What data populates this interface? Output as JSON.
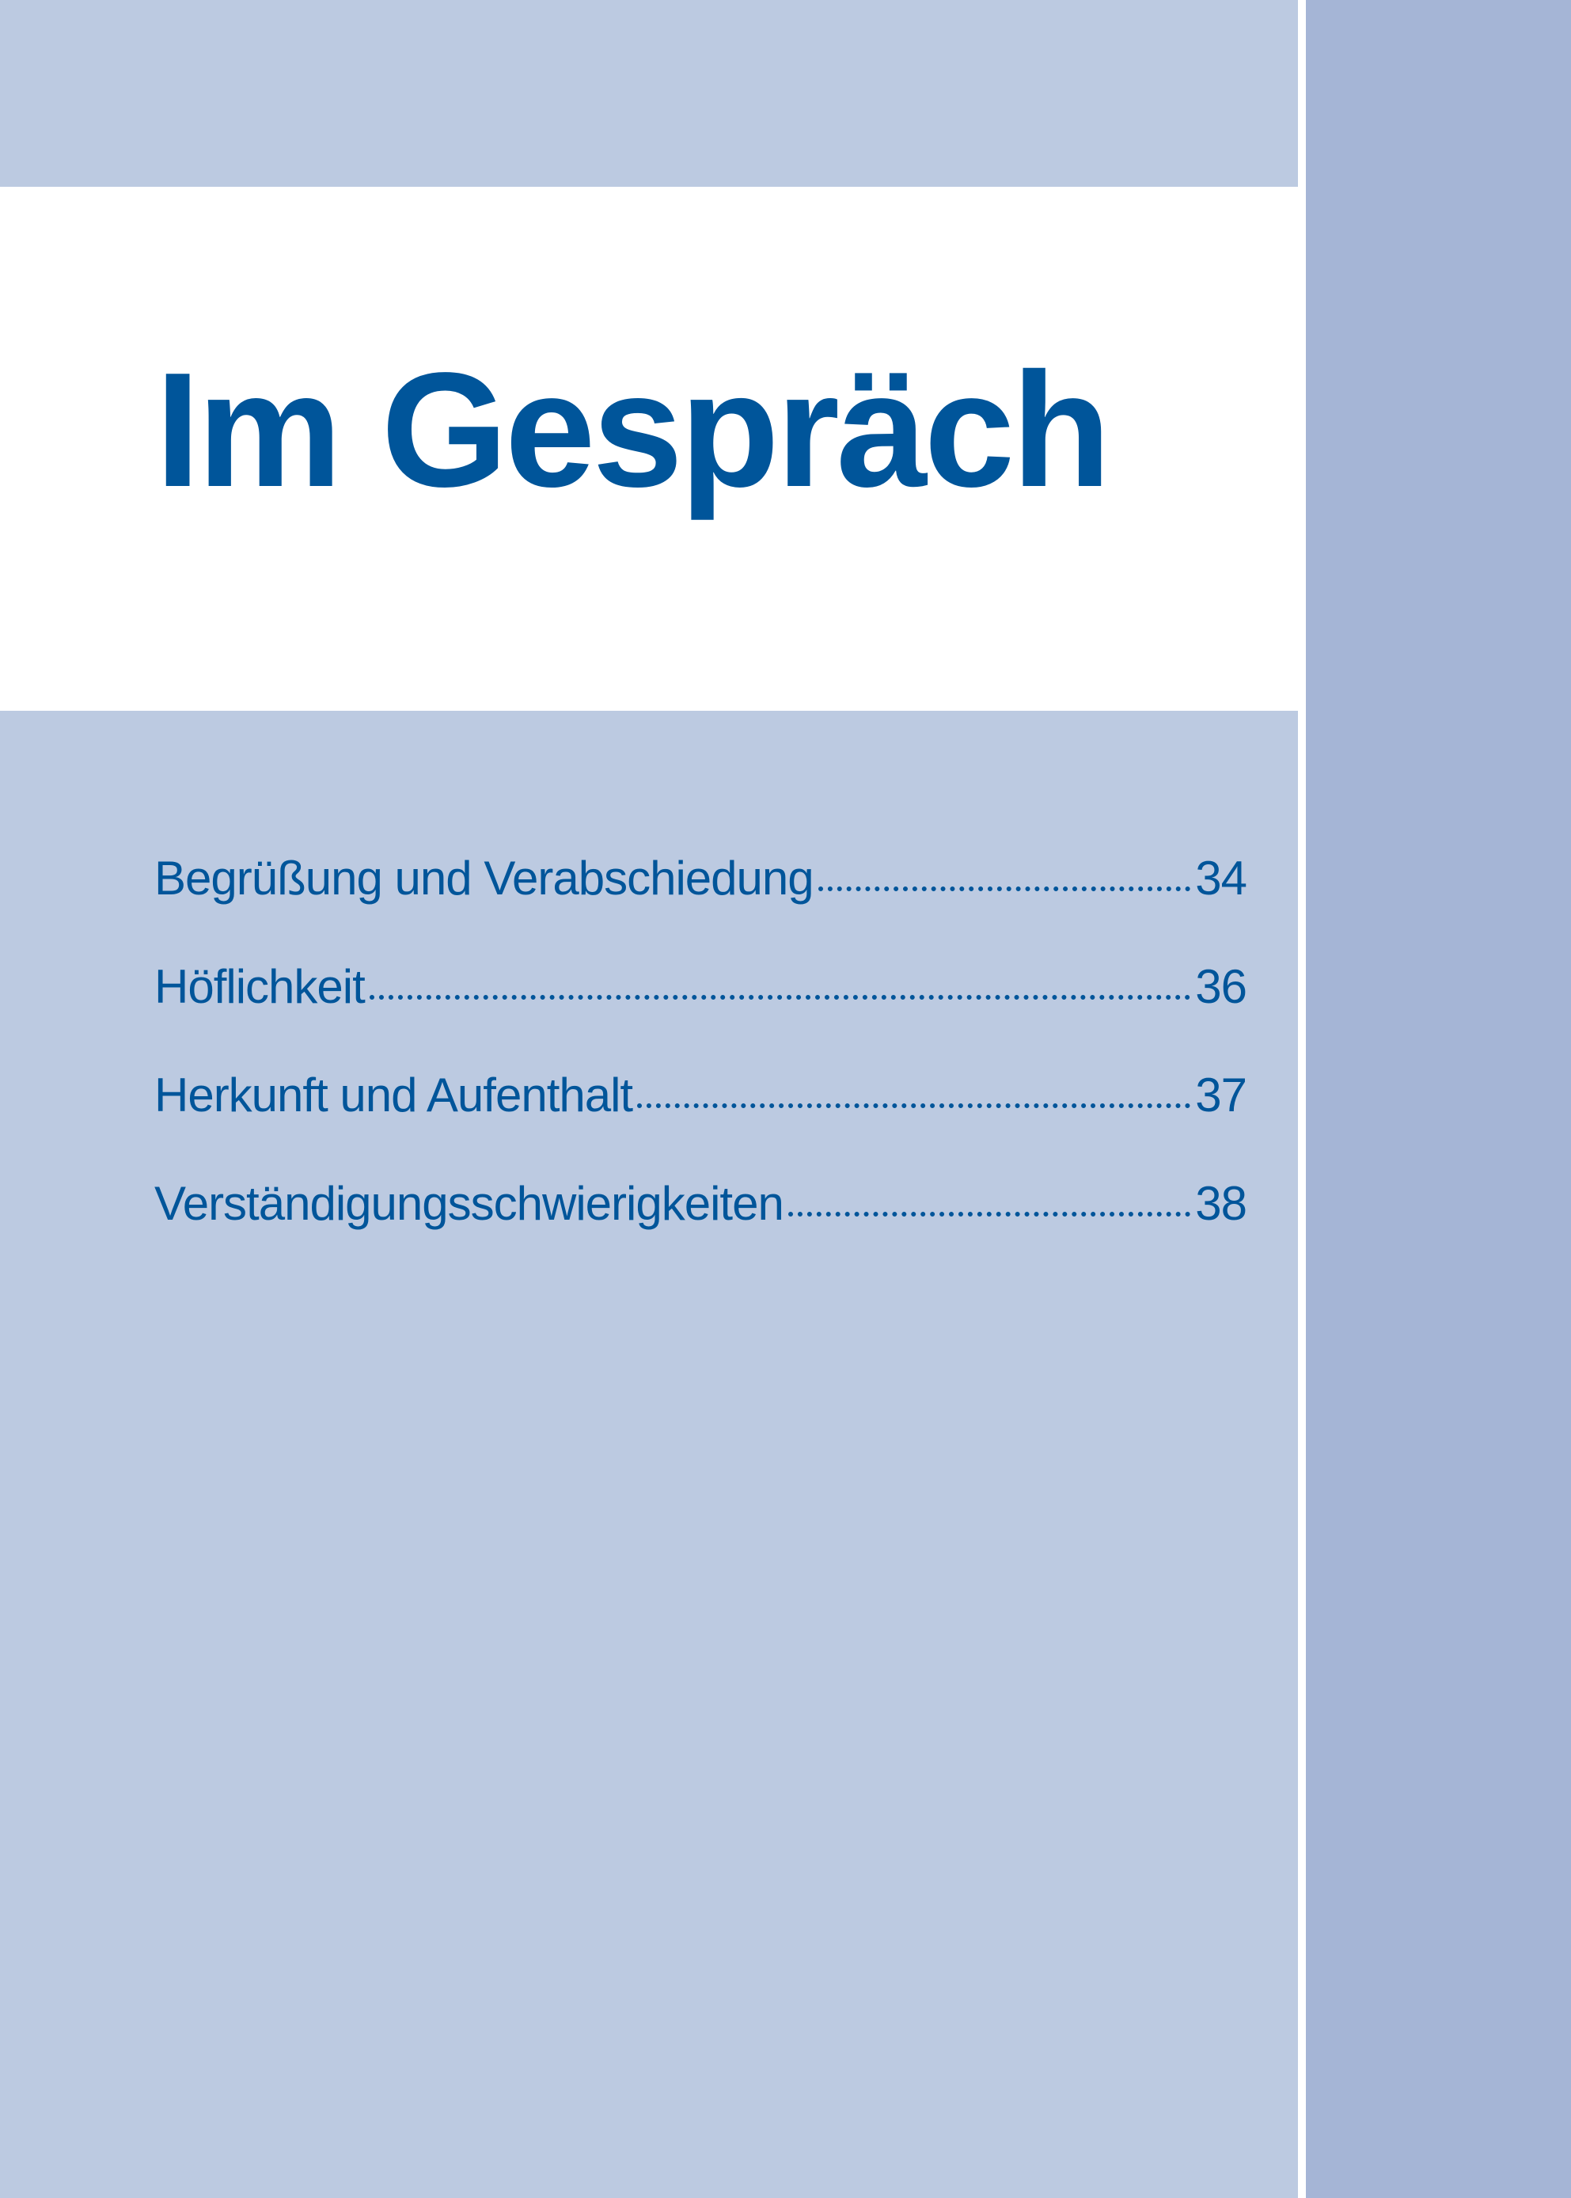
{
  "title": "Im Gespräch",
  "colors": {
    "text": "#00559a",
    "band": "#bccae1",
    "side_strip": "#a5b5d6"
  },
  "toc": [
    {
      "label": "Begrüßung und Verabschiedung",
      "page": "34"
    },
    {
      "label": "Höflichkeit",
      "page": "36"
    },
    {
      "label": "Herkunft und Aufenthalt",
      "page": "37"
    },
    {
      "label": "Verständigungsschwierigkeiten",
      "page": "38"
    }
  ]
}
